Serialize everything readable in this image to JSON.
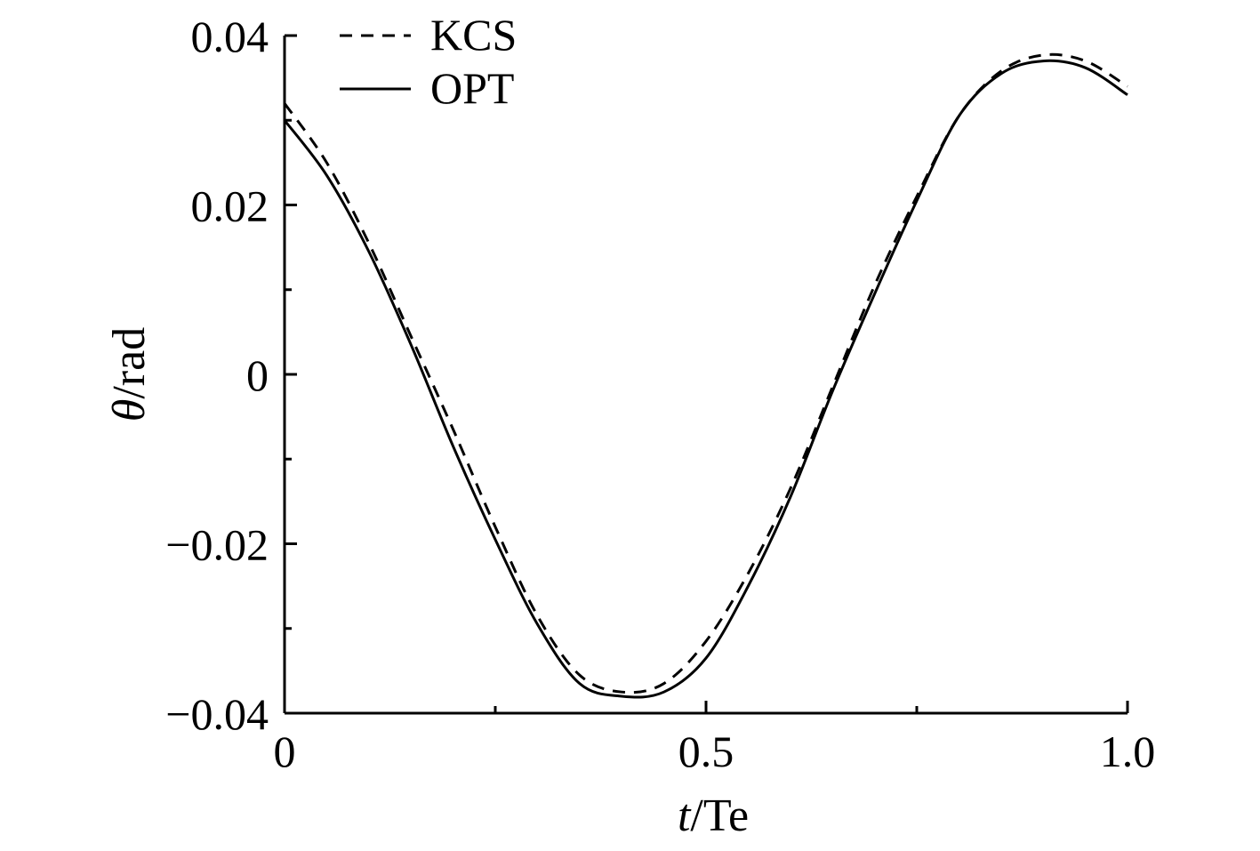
{
  "chart_data": {
    "type": "line",
    "title": "",
    "xlabel_italic": "t",
    "xlabel_rest": "/Te",
    "ylabel_italic": "θ",
    "ylabel_rest": "/rad",
    "xlim": [
      0,
      1.0
    ],
    "ylim": [
      -0.04,
      0.04
    ],
    "x_ticks": [
      0,
      0.5,
      1.0
    ],
    "x_tick_labels": [
      "0",
      "0.5",
      "1.0"
    ],
    "x_minor_ticks": [
      0.25,
      0.75
    ],
    "y_ticks": [
      -0.04,
      -0.02,
      0,
      0.02,
      0.04
    ],
    "y_tick_labels": [
      "−0.04",
      "−0.02",
      "0",
      "0.02",
      "0.04"
    ],
    "y_minor_ticks": [
      -0.03,
      -0.01,
      0.01,
      0.03
    ],
    "grid": false,
    "legend_position": "top-left",
    "series": [
      {
        "name": "KCS",
        "style": "dashed",
        "x": [
          0,
          0.05,
          0.1,
          0.15,
          0.2,
          0.25,
          0.3,
          0.35,
          0.4,
          0.45,
          0.5,
          0.55,
          0.6,
          0.65,
          0.7,
          0.75,
          0.8,
          0.85,
          0.9,
          0.95,
          1.0
        ],
        "y": [
          0.032,
          0.025,
          0.0155,
          0.0045,
          -0.0065,
          -0.018,
          -0.0285,
          -0.0355,
          -0.0375,
          -0.0365,
          -0.0315,
          -0.0235,
          -0.0135,
          -0.0015,
          0.0105,
          0.021,
          0.0305,
          0.0358,
          0.0377,
          0.037,
          0.034
        ]
      },
      {
        "name": "OPT",
        "style": "solid",
        "x": [
          0,
          0.05,
          0.1,
          0.15,
          0.2,
          0.25,
          0.3,
          0.35,
          0.4,
          0.45,
          0.5,
          0.55,
          0.6,
          0.65,
          0.7,
          0.75,
          0.8,
          0.85,
          0.9,
          0.95,
          1.0
        ],
        "y": [
          0.03,
          0.0235,
          0.0145,
          0.0035,
          -0.0085,
          -0.0195,
          -0.0295,
          -0.0365,
          -0.038,
          -0.0375,
          -0.0335,
          -0.025,
          -0.0145,
          -0.002,
          0.0095,
          0.0205,
          0.0305,
          0.0355,
          0.037,
          0.0362,
          0.033
        ]
      }
    ]
  }
}
